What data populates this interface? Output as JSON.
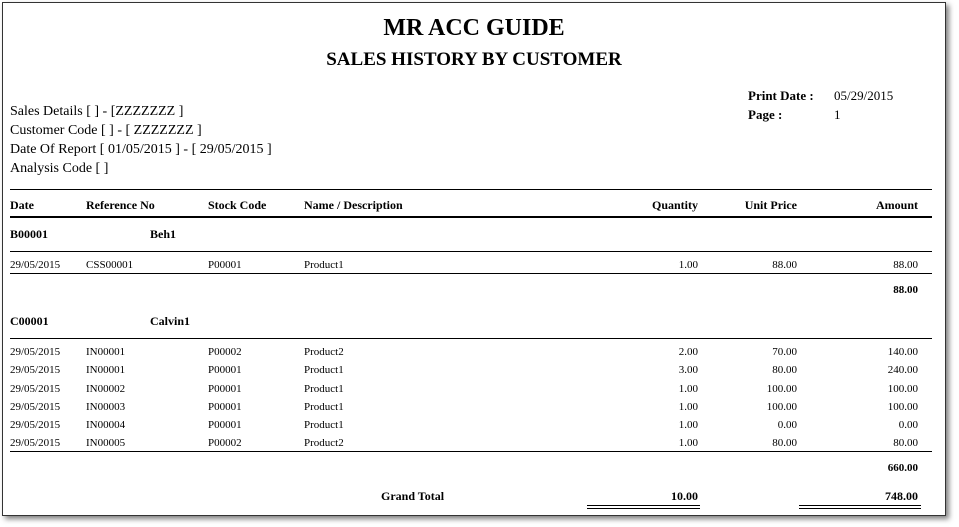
{
  "report": {
    "company": "MR ACC GUIDE",
    "title": "SALES HISTORY BY CUSTOMER",
    "print_date_label": "Print Date :",
    "print_date": "05/29/2015",
    "page_label": "Page :",
    "page": "1",
    "criteria": [
      "Sales Details [  ] - [ZZZZZZZ  ]",
      "Customer Code [  ] - [ ZZZZZZZ ]",
      "Date Of Report [ 01/05/2015 ] - [ 29/05/2015 ]",
      "Analysis Code [  ]"
    ]
  },
  "columns": [
    "Date",
    "Reference No",
    "Stock Code",
    "Name / Description",
    "Quantity",
    "Unit Price",
    "Amount"
  ],
  "groups": [
    {
      "code": "B00001",
      "name": "Beh1",
      "rows": [
        [
          "29/05/2015",
          "CSS00001",
          "P00001",
          "Product1",
          "1.00",
          "88.00",
          "88.00"
        ]
      ],
      "subtotal": "88.00"
    },
    {
      "code": "C00001",
      "name": "Calvin1",
      "rows": [
        [
          "29/05/2015",
          "IN00001",
          "P00002",
          "Product2",
          "2.00",
          "70.00",
          "140.00"
        ],
        [
          "29/05/2015",
          "IN00001",
          "P00001",
          "Product1",
          "3.00",
          "80.00",
          "240.00"
        ],
        [
          "29/05/2015",
          "IN00002",
          "P00001",
          "Product1",
          "1.00",
          "100.00",
          "100.00"
        ],
        [
          "29/05/2015",
          "IN00003",
          "P00001",
          "Product1",
          "1.00",
          "100.00",
          "100.00"
        ],
        [
          "29/05/2015",
          "IN00004",
          "P00001",
          "Product1",
          "1.00",
          "0.00",
          "0.00"
        ],
        [
          "29/05/2015",
          "IN00005",
          "P00002",
          "Product2",
          "1.00",
          "80.00",
          "80.00"
        ]
      ],
      "subtotal": "660.00"
    }
  ],
  "grand_total": {
    "label": "Grand Total",
    "quantity": "10.00",
    "amount": "748.00"
  }
}
